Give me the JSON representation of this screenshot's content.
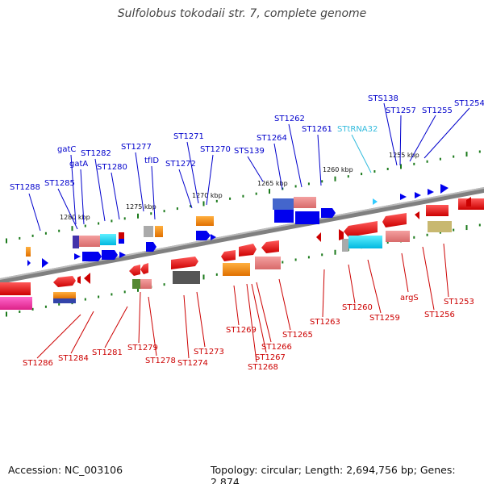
{
  "title": "Sulfolobus tokodaii str. 7, complete genome",
  "footer": {
    "accession": "Accession: NC_003106",
    "summary": "Topology: circular; Length: 2,694,756 bp; Genes: 2,874"
  },
  "colors": {
    "top_label": "#0000cc",
    "bottom_label": "#cc0000",
    "trna_label": "#33bbdd",
    "axis": "#777777",
    "tick": "#1b7a1b"
  },
  "scale_ticks": [
    "1255 kbp",
    "1260 kbp",
    "1265 kbp",
    "1270 kbp",
    "1275 kbp",
    "1280 kbp"
  ],
  "top_labels": [
    "STS138",
    "ST1257",
    "ST1255",
    "ST1254",
    "STtRNA32",
    "ST1262",
    "ST1261",
    "ST1264",
    "STS139",
    "ST1271",
    "ST1270",
    "ST1272",
    "tfID",
    "ST1277",
    "gatC",
    "gatA",
    "ST1282",
    "ST1280",
    "ST1285",
    "ST1288"
  ],
  "bottom_labels": [
    "ST1253",
    "argS",
    "ST1256",
    "ST1259",
    "ST1260",
    "ST1263",
    "ST1265",
    "ST1266",
    "ST1267",
    "ST1268",
    "ST1269",
    "ST1273",
    "ST1274",
    "ST1278",
    "ST1279",
    "ST1281",
    "ST1284",
    "ST1286"
  ]
}
